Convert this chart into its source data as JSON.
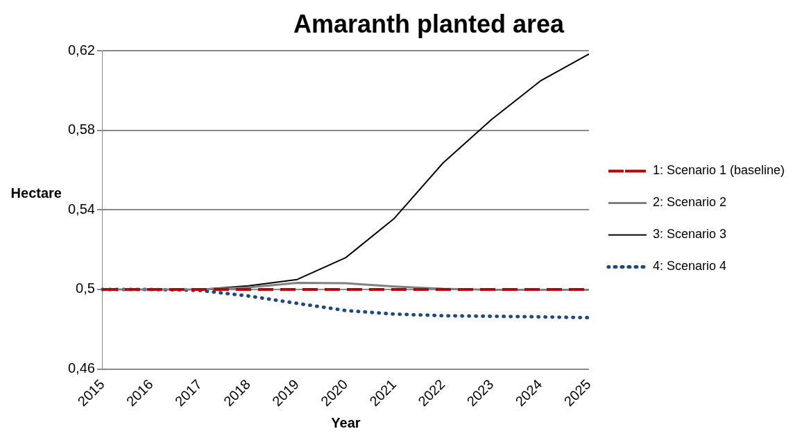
{
  "chart_data": {
    "type": "line",
    "title": "Amaranth planted area",
    "xlabel": "Year",
    "ylabel": "Hectare",
    "categories": [
      "2015",
      "2016",
      "2017",
      "2018",
      "2019",
      "2020",
      "2021",
      "2022",
      "2023",
      "2024",
      "2025"
    ],
    "series": [
      {
        "name": "1: Scenario 1 (baseline)",
        "color": "#c00000",
        "line_style": "dashed",
        "values": [
          0.5,
          0.5,
          0.5,
          0.5,
          0.5,
          0.5,
          0.5,
          0.5,
          0.5,
          0.5,
          0.5
        ]
      },
      {
        "name": "2: Scenario 2",
        "color": "#808080",
        "line_style": "solid",
        "values": [
          0.5,
          0.5,
          0.5,
          0.501,
          0.5033,
          0.5031,
          0.5015,
          0.5003,
          0.4998,
          0.4998,
          0.4998
        ]
      },
      {
        "name": "3: Scenario 3",
        "color": "#000000",
        "line_style": "solid",
        "values": [
          0.5,
          0.5,
          0.5,
          0.5018,
          0.505,
          0.516,
          0.5358,
          0.5636,
          0.5855,
          0.6048,
          0.6184
        ]
      },
      {
        "name": "4: Scenario 4",
        "color": "#1f497d",
        "line_style": "dotted",
        "values": [
          0.5,
          0.5,
          0.4995,
          0.4967,
          0.493,
          0.4894,
          0.4876,
          0.4868,
          0.4865,
          0.4862,
          0.4858
        ]
      }
    ],
    "ylim": [
      0.46,
      0.62
    ],
    "yticks": [
      {
        "value": 0.46,
        "label": "0,46"
      },
      {
        "value": 0.5,
        "label": "0,5"
      },
      {
        "value": 0.54,
        "label": "0,54"
      },
      {
        "value": 0.58,
        "label": "0,58"
      },
      {
        "value": 0.62,
        "label": "0,62"
      }
    ],
    "grid": "y",
    "legend": "right",
    "marker": "none"
  }
}
